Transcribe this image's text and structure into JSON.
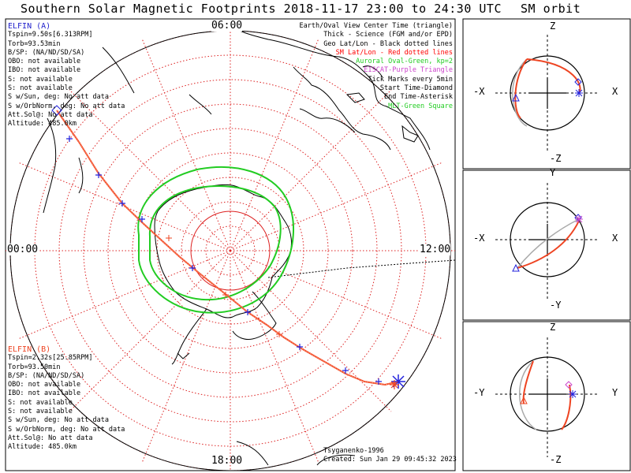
{
  "main_title": "Southern Solar Magnetic Footprints 2018-11-17 23:00 to 24:30 UTC",
  "side_title": "SM orbit",
  "mlt_labels": {
    "top": "06:00",
    "left": "00:00",
    "right": "12:00",
    "bottom": "18:00"
  },
  "legend": [
    {
      "text": "Earth/Oval View Center Time (triangle)",
      "color": "#000000"
    },
    {
      "text": "Thick - Science (FGM and/or EPD)",
      "color": "#000000"
    },
    {
      "text": "Geo Lat/Lon - Black dotted lines",
      "color": "#000000"
    },
    {
      "text": "SM Lat/Lon - Red dotted lines",
      "color": "#ff0000"
    },
    {
      "text": "Auroral Oval-Green, kp=2",
      "color": "#22cc22"
    },
    {
      "text": "EISCAT-Purple Triangle",
      "color": "#cc44cc"
    },
    {
      "text": "Tick Marks every 5min",
      "color": "#000000"
    },
    {
      "text": "Start Time-Diamond",
      "color": "#000000"
    },
    {
      "text": "End Time-Asterisk",
      "color": "#000000"
    },
    {
      "text": "MLT-Green Square",
      "color": "#22cc22"
    }
  ],
  "probe_a": {
    "name": "ELFIN (A)",
    "color": "#2222cc",
    "lines": [
      "Tspin=9.50s[6.313RPM]",
      "Torb=93.53min",
      "B/SP: (NA/ND/SD/SA)",
      "OBO: not available",
      "IBO: not available",
      "S: not available",
      "S: not available",
      "S w/Sun, deg: No att data",
      "S w/OrbNorm, deg: No att data",
      "Att.Sol@: No att data",
      "Altitude: 485.0km"
    ]
  },
  "probe_b": {
    "name": "ELFIN (B)",
    "color": "#ee4422",
    "lines": [
      "Tspin=2.32s[25.85RPM]",
      "Torb=93.50min",
      "B/SP: (NA/ND/SD/SA)",
      "OBO: not available",
      "IBO: not available",
      "S: not available",
      "S: not available",
      "S w/Sun, deg: No att data",
      "S w/OrbNorm, deg: No att data",
      "Att.Sol@: No att data",
      "Altitude: 485.0km"
    ]
  },
  "credit": "Tsyganenko-1996",
  "created": "Created: Sun Jan 29 09:45:32 2023",
  "orbit_panels": [
    {
      "top": "Z",
      "bottom": "-Z",
      "left": "-X",
      "right": "X"
    },
    {
      "top": "Y",
      "bottom": "-Y",
      "left": "-X",
      "right": "X"
    },
    {
      "top": "Z",
      "bottom": "-Z",
      "left": "-Y",
      "right": "Y"
    }
  ],
  "colors": {
    "grid_red": "#dd2222",
    "trace_a": "#ff8866",
    "trace_b": "#ee4422",
    "tick_blue": "#2222dd",
    "oval_green": "#22cc22",
    "coast_black": "#000000",
    "orbit_gray": "#aaaaaa"
  }
}
